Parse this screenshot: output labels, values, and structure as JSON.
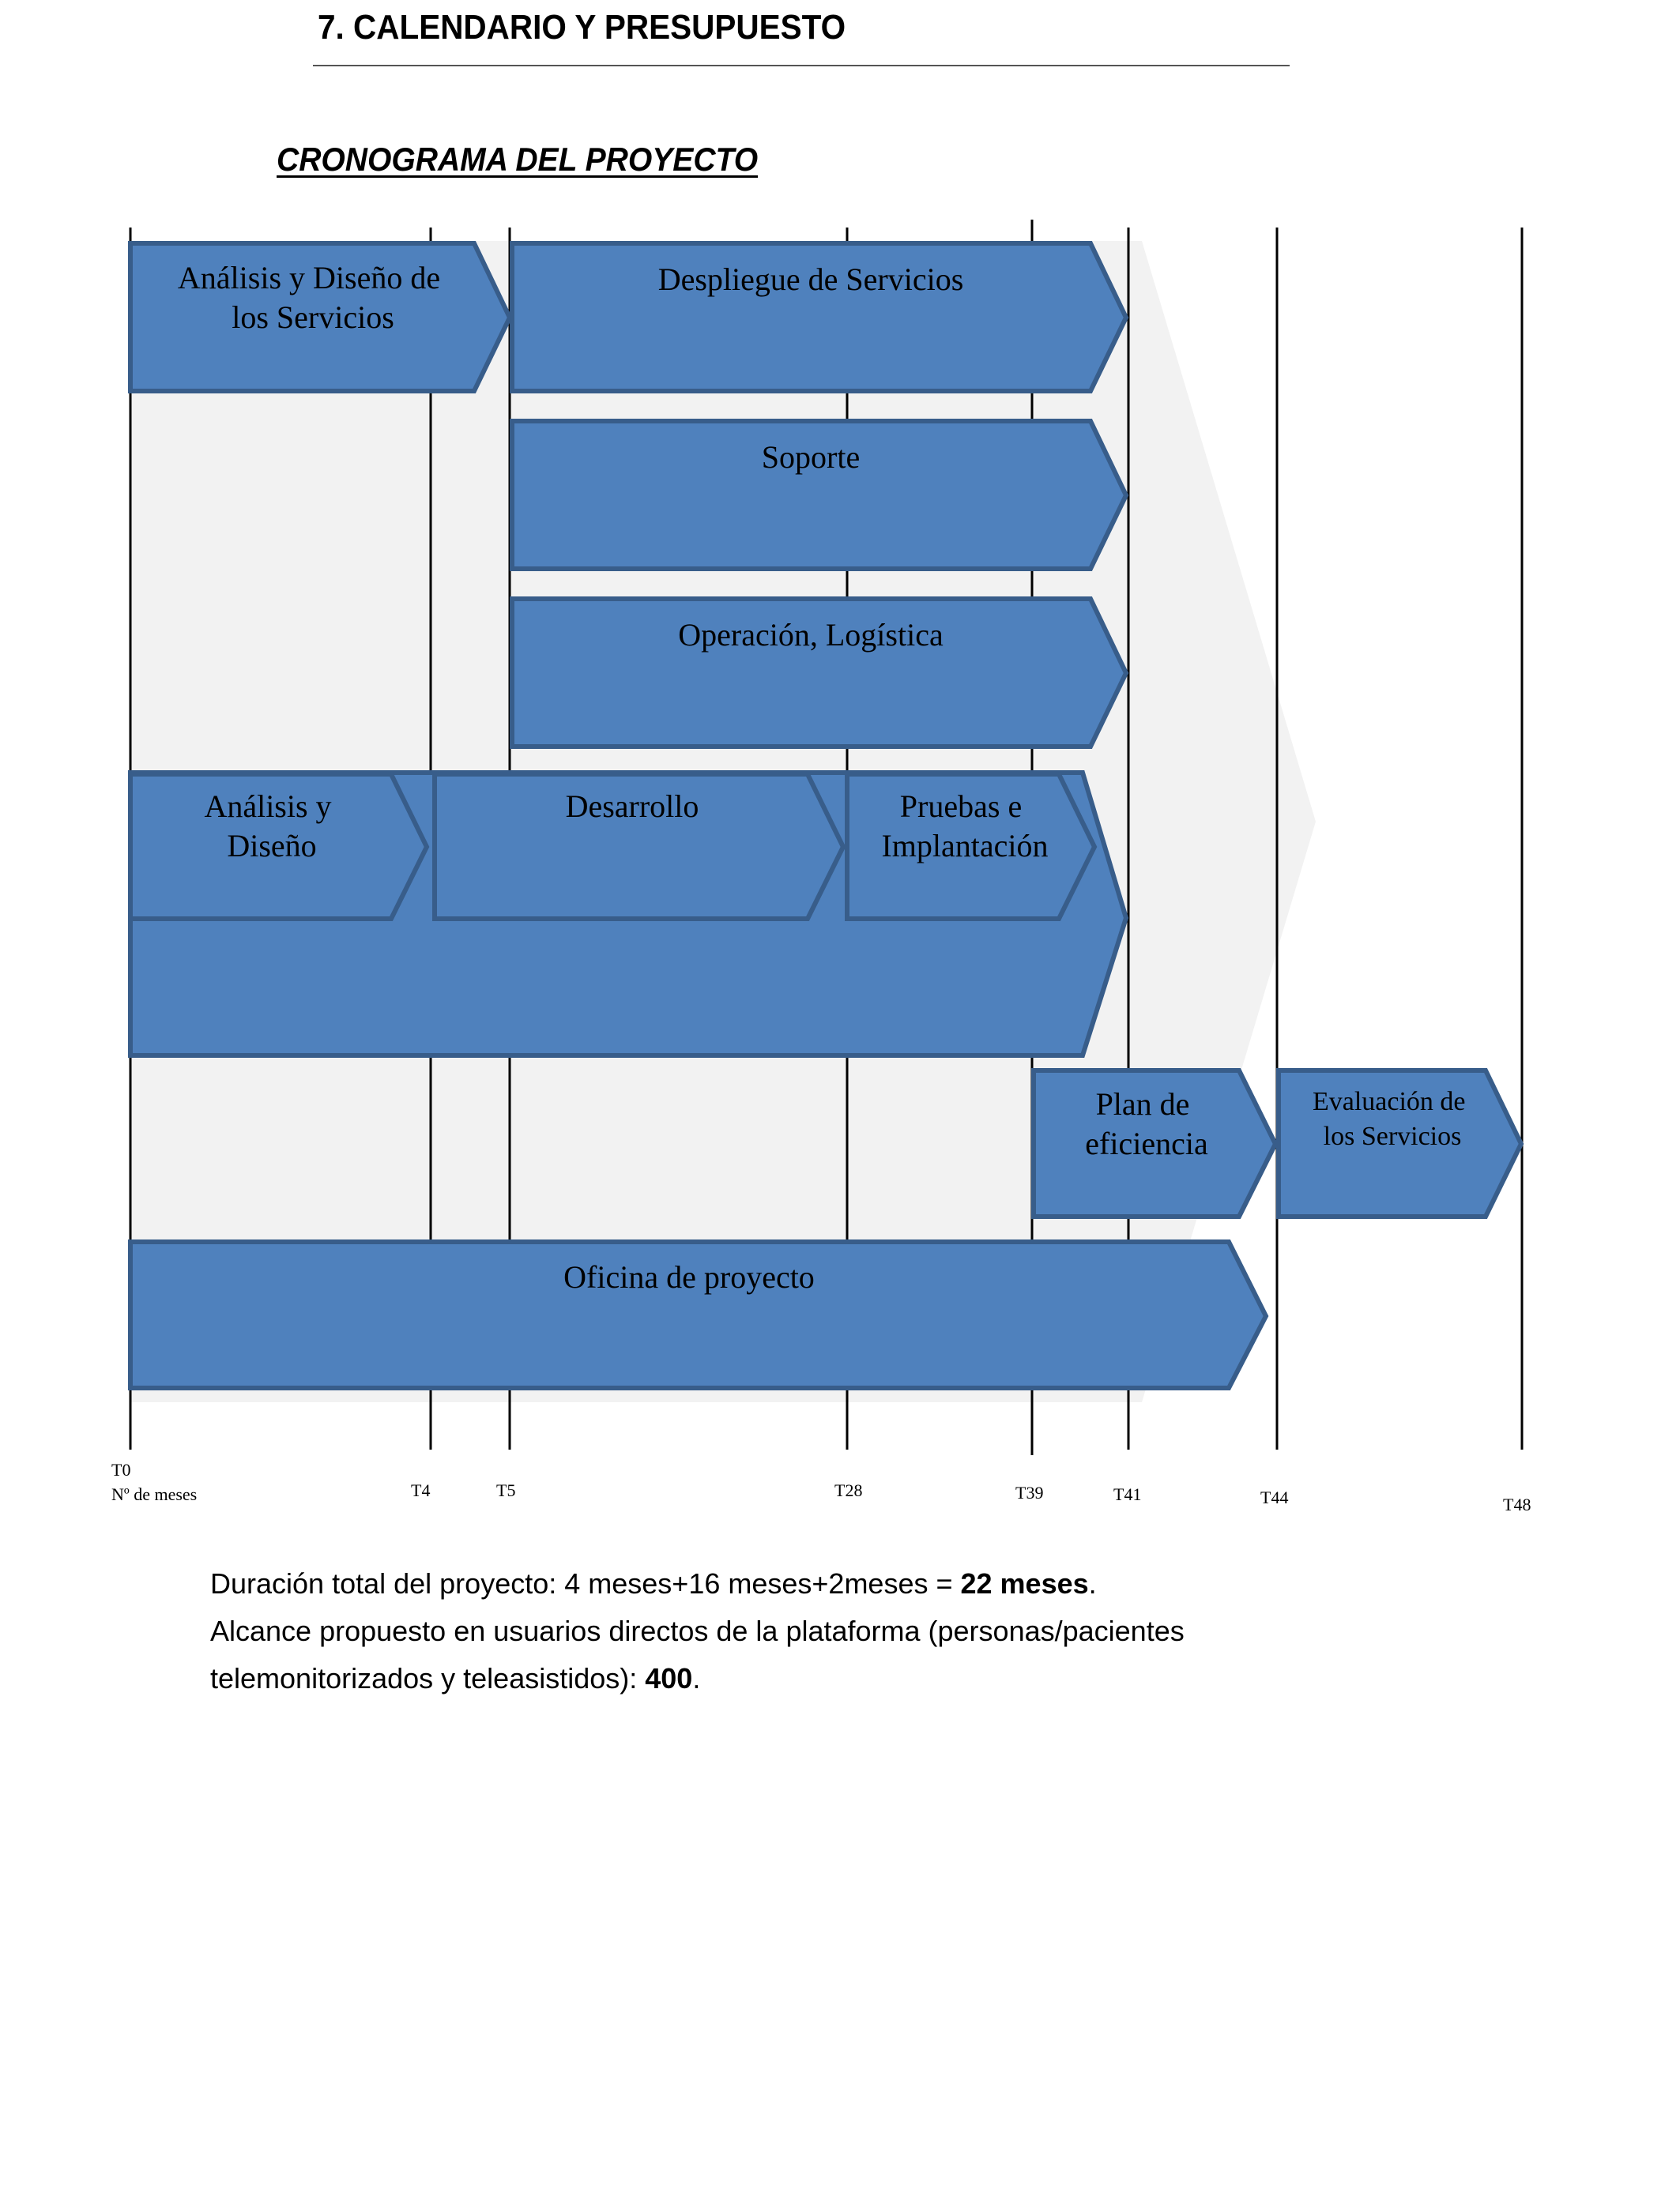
{
  "section_title": "7.  CALENDARIO Y PRESUPUESTO",
  "subtitle": "CRONOGRAMA DEL PROYECTO",
  "colors": {
    "block_fill": "#4f81bd",
    "block_border": "#385d8a",
    "background_chevron": "#f2f2f2",
    "milestone_line": "#000000"
  },
  "milestones": {
    "t0": "T0",
    "t0_caption": "Nº de meses",
    "t4": "T4",
    "t5": "T5",
    "t28": "T28",
    "t39": "T39",
    "t41": "T41",
    "t44": "T44",
    "t48": "T48"
  },
  "blocks": {
    "analisis_diseno_servicios": [
      "Análisis y Diseño de",
      "los Servicios"
    ],
    "despliegue": [
      "Despliegue de Servicios"
    ],
    "soporte": [
      "Soporte"
    ],
    "operacion": [
      "Operación, Logística"
    ],
    "analisis_diseno": [
      "Análisis y",
      "Diseño"
    ],
    "desarrollo": [
      "Desarrollo"
    ],
    "pruebas": [
      "Pruebas e",
      "Implantación"
    ],
    "plan_eficiencia": [
      "Plan de",
      "eficiencia"
    ],
    "evaluacion": [
      "Evaluación de",
      "los Servicios"
    ],
    "oficina": [
      "Oficina de proyecto"
    ]
  },
  "summary": {
    "duration_prefix": "Duración total del proyecto: 4 meses+16 meses+2meses = ",
    "duration_value": "22 meses",
    "duration_suffix": ".",
    "scope_prefix": "Alcance propuesto en usuarios directos de la plataforma (personas/pacientes telemonitorizados y teleasistidos): ",
    "scope_value": "400",
    "scope_suffix": "."
  }
}
